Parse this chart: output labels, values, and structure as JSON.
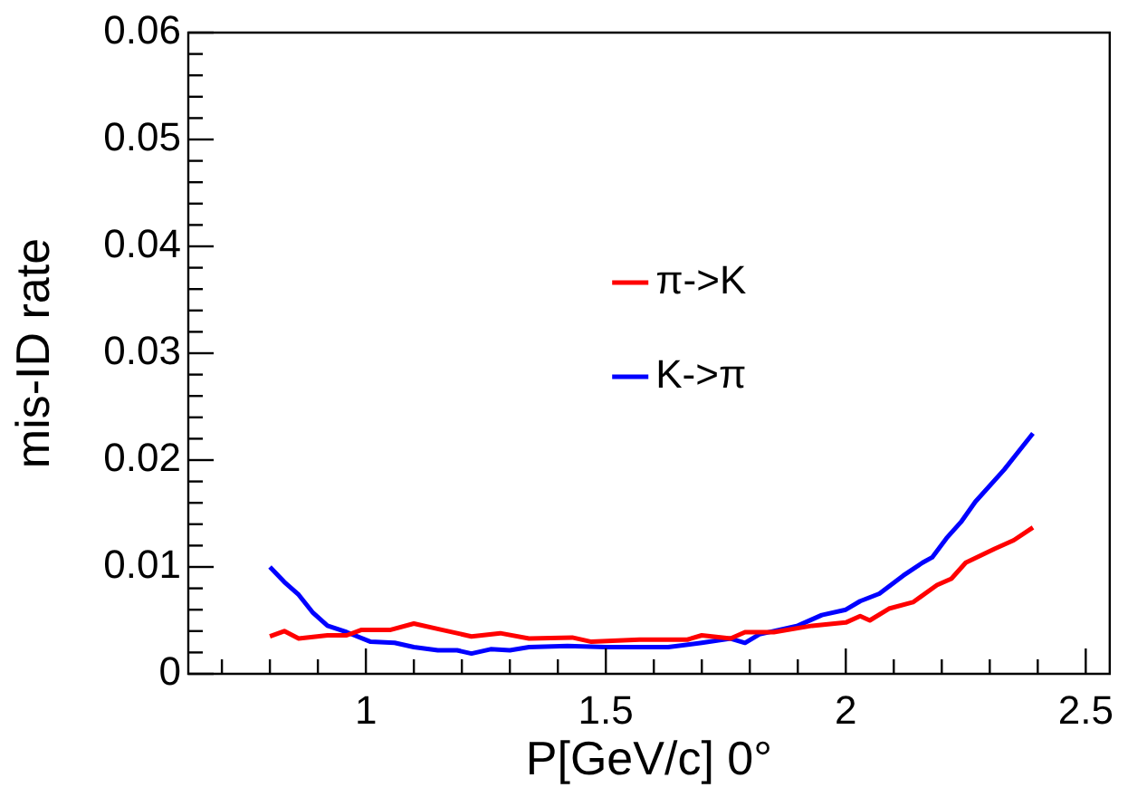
{
  "chart_data": {
    "type": "line",
    "xlabel": "P[GeV/c] 0°",
    "ylabel": "mis-ID rate",
    "xlim": [
      0.63,
      2.55
    ],
    "ylim": [
      0,
      0.06
    ],
    "xticks": [
      {
        "value": 0.7,
        "label": null
      },
      {
        "value": 0.8,
        "label": null
      },
      {
        "value": 0.9,
        "label": null
      },
      1,
      {
        "value": 1.1,
        "label": null
      },
      {
        "value": 1.2,
        "label": null
      },
      {
        "value": 1.3,
        "label": null
      },
      {
        "value": 1.4,
        "label": null
      },
      1.5,
      {
        "value": 1.6,
        "label": null
      },
      {
        "value": 1.7,
        "label": null
      },
      {
        "value": 1.8,
        "label": null
      },
      {
        "value": 1.9,
        "label": null
      },
      2,
      {
        "value": 2.1,
        "label": null
      },
      {
        "value": 2.2,
        "label": null
      },
      {
        "value": 2.3,
        "label": null
      },
      {
        "value": 2.4,
        "label": null
      },
      2.5
    ],
    "yticks": [
      0,
      {
        "value": 0.002,
        "label": null
      },
      {
        "value": 0.004,
        "label": null
      },
      {
        "value": 0.006,
        "label": null
      },
      {
        "value": 0.008,
        "label": null
      },
      0.01,
      {
        "value": 0.012,
        "label": null
      },
      {
        "value": 0.014,
        "label": null
      },
      {
        "value": 0.016,
        "label": null
      },
      {
        "value": 0.018,
        "label": null
      },
      0.02,
      {
        "value": 0.022,
        "label": null
      },
      {
        "value": 0.024,
        "label": null
      },
      {
        "value": 0.026,
        "label": null
      },
      {
        "value": 0.028,
        "label": null
      },
      0.03,
      {
        "value": 0.032,
        "label": null
      },
      {
        "value": 0.034,
        "label": null
      },
      {
        "value": 0.036,
        "label": null
      },
      {
        "value": 0.038,
        "label": null
      },
      0.04,
      {
        "value": 0.042,
        "label": null
      },
      {
        "value": 0.044,
        "label": null
      },
      {
        "value": 0.046,
        "label": null
      },
      {
        "value": 0.048,
        "label": null
      },
      0.05,
      {
        "value": 0.052,
        "label": null
      },
      {
        "value": 0.054,
        "label": null
      },
      {
        "value": 0.056,
        "label": null
      },
      {
        "value": 0.058,
        "label": null
      },
      0.06
    ],
    "grid": false,
    "legend": "top",
    "marker": "none",
    "line_style": "solid",
    "series": [
      {
        "name": "π->K",
        "color": "#ff0000",
        "x": [
          0.8,
          0.83,
          0.86,
          0.92,
          0.96,
          0.99,
          1.05,
          1.1,
          1.16,
          1.22,
          1.28,
          1.34,
          1.43,
          1.47,
          1.57,
          1.67,
          1.7,
          1.76,
          1.79,
          1.85,
          1.93,
          2.0,
          2.03,
          2.05,
          2.09,
          2.14,
          2.19,
          2.22,
          2.25,
          2.31,
          2.35,
          2.39
        ],
        "values": [
          0.0035,
          0.004,
          0.0033,
          0.0036,
          0.0036,
          0.0041,
          0.0041,
          0.0047,
          0.0041,
          0.0035,
          0.0038,
          0.0033,
          0.0034,
          0.003,
          0.0032,
          0.0032,
          0.0036,
          0.0033,
          0.0039,
          0.0039,
          0.0045,
          0.0048,
          0.0054,
          0.005,
          0.0061,
          0.0067,
          0.0083,
          0.0089,
          0.0104,
          0.0117,
          0.0125,
          0.0137
        ]
      },
      {
        "name": "K->π",
        "color": "#0000ff",
        "x": [
          0.8,
          0.83,
          0.86,
          0.89,
          0.92,
          0.96,
          1.01,
          1.06,
          1.1,
          1.15,
          1.19,
          1.22,
          1.26,
          1.3,
          1.34,
          1.42,
          1.5,
          1.56,
          1.63,
          1.7,
          1.76,
          1.79,
          1.82,
          1.9,
          1.95,
          2.0,
          2.03,
          2.07,
          2.12,
          2.16,
          2.18,
          2.21,
          2.24,
          2.27,
          2.33,
          2.39
        ],
        "values": [
          0.01,
          0.0086,
          0.0074,
          0.0057,
          0.0045,
          0.0039,
          0.003,
          0.0029,
          0.0025,
          0.0022,
          0.0022,
          0.0019,
          0.0023,
          0.0022,
          0.0025,
          0.0026,
          0.0025,
          0.0025,
          0.0025,
          0.0029,
          0.0033,
          0.0029,
          0.0037,
          0.0045,
          0.0055,
          0.006,
          0.0068,
          0.0075,
          0.0092,
          0.0104,
          0.0109,
          0.0127,
          0.0142,
          0.0161,
          0.0191,
          0.0225
        ]
      }
    ]
  }
}
